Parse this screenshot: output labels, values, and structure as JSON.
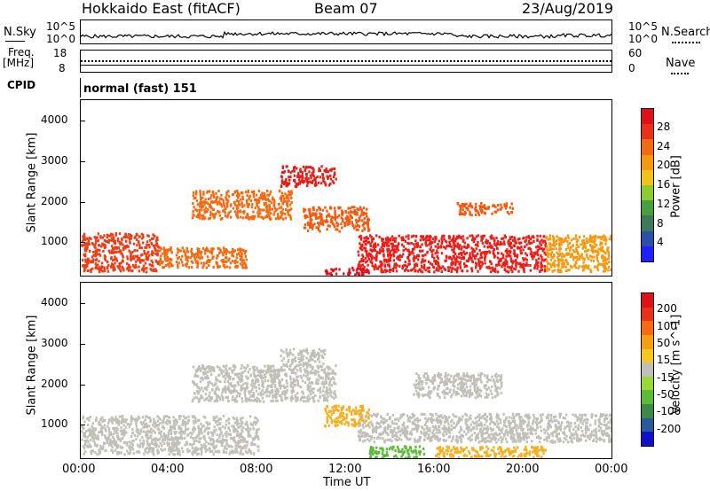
{
  "header": {
    "title": "Hokkaido East (fitACF)",
    "beam": "Beam 07",
    "date": "23/Aug/2019"
  },
  "nsky_panel": {
    "left_label_top": "N.Sky",
    "right_label_top": "N.Search",
    "left_ticks": [
      "10^5",
      "10^0"
    ],
    "right_ticks": [
      "10^5",
      "10^0"
    ],
    "right_line_style": "dotted"
  },
  "freq_panel": {
    "left_label": [
      "Freq.",
      "[MHz]"
    ],
    "left_ticks": [
      "18",
      "8"
    ],
    "right_ticks": [
      "60",
      "0"
    ],
    "right_label": "Nave",
    "right_line_style": "dotted"
  },
  "cpid_panel": {
    "left_label": "CPID",
    "value": "normal (fast) 151"
  },
  "chart_data": [
    {
      "type": "heatmap",
      "name": "power",
      "ylabel": "Slant Range [km]",
      "ylim": [
        180,
        4500
      ],
      "yticks": [
        "1000",
        "2000",
        "3000",
        "4000"
      ],
      "colorbar_label": "Power [dB]",
      "colorbar_ticks": [
        "4",
        "8",
        "12",
        "16",
        "20",
        "24",
        "28"
      ],
      "colorbar_colors": [
        "#1f1fff",
        "#2c4fa8",
        "#3d7a5a",
        "#46a040",
        "#8ccc2e",
        "#f2c21a",
        "#f59a10",
        "#f36a12",
        "#e8301a",
        "#e0101a"
      ],
      "regions": [
        {
          "t0": 0.0,
          "t1": 3.5,
          "r0": 300,
          "r1": 1250,
          "color": "#e8401a"
        },
        {
          "t0": 3.5,
          "t1": 7.5,
          "r0": 400,
          "r1": 900,
          "color": "#f36a12"
        },
        {
          "t0": 5.0,
          "t1": 9.5,
          "r0": 1600,
          "r1": 2300,
          "color": "#f36a12"
        },
        {
          "t0": 9.0,
          "t1": 11.5,
          "r0": 2400,
          "r1": 2900,
          "color": "#e0201a"
        },
        {
          "t0": 10.0,
          "t1": 13.0,
          "r0": 1300,
          "r1": 1900,
          "color": "#f35a12"
        },
        {
          "t0": 12.5,
          "t1": 21.0,
          "r0": 300,
          "r1": 1200,
          "color": "#e8201a"
        },
        {
          "t0": 11.0,
          "t1": 13.0,
          "r0": 200,
          "r1": 400,
          "color": "#e0101a"
        },
        {
          "t0": 17.0,
          "t1": 19.5,
          "r0": 1700,
          "r1": 2000,
          "color": "#f35a12"
        },
        {
          "t0": 21.0,
          "t1": 24.0,
          "r0": 300,
          "r1": 1200,
          "color": "#f59a10"
        }
      ]
    },
    {
      "type": "heatmap",
      "name": "velocity",
      "ylabel": "Slant Range [km]",
      "ylim": [
        180,
        4500
      ],
      "yticks": [
        "1000",
        "2000",
        "3000",
        "4000"
      ],
      "colorbar_label": "Velocity [m s^-1]",
      "colorbar_ticks": [
        "200",
        "100",
        "50",
        "15",
        "-15",
        "-50",
        "-100",
        "-200"
      ],
      "colorbar_colors": [
        "#1010c8",
        "#2a5a9a",
        "#3b8a4a",
        "#5cbc3a",
        "#9ad83a",
        "#c0c0b8",
        "#f5c820",
        "#f5a010",
        "#f56a12",
        "#e8301a",
        "#e0101a"
      ],
      "regions": [
        {
          "t0": 0.0,
          "t1": 8.0,
          "r0": 300,
          "r1": 1250,
          "color": "#c0c0b8"
        },
        {
          "t0": 5.0,
          "t1": 11.5,
          "r0": 1600,
          "r1": 2500,
          "color": "#c0c0b8"
        },
        {
          "t0": 9.0,
          "t1": 11.0,
          "r0": 2500,
          "r1": 2900,
          "color": "#c0c0b8"
        },
        {
          "t0": 12.5,
          "t1": 24.0,
          "r0": 600,
          "r1": 1300,
          "color": "#c0c0b8"
        },
        {
          "t0": 13.0,
          "t1": 15.5,
          "r0": 200,
          "r1": 500,
          "color": "#5cbc3a"
        },
        {
          "t0": 16.0,
          "t1": 21.0,
          "r0": 200,
          "r1": 500,
          "color": "#f5b020"
        },
        {
          "t0": 11.0,
          "t1": 13.0,
          "r0": 1000,
          "r1": 1500,
          "color": "#f5b020"
        },
        {
          "t0": 15.0,
          "t1": 19.0,
          "r0": 1700,
          "r1": 2300,
          "color": "#c0c0b8"
        }
      ]
    }
  ],
  "x_axis": {
    "label": "Time UT",
    "ticks": [
      "00:00",
      "04:00",
      "08:00",
      "12:00",
      "16:00",
      "20:00",
      "00:00"
    ]
  }
}
